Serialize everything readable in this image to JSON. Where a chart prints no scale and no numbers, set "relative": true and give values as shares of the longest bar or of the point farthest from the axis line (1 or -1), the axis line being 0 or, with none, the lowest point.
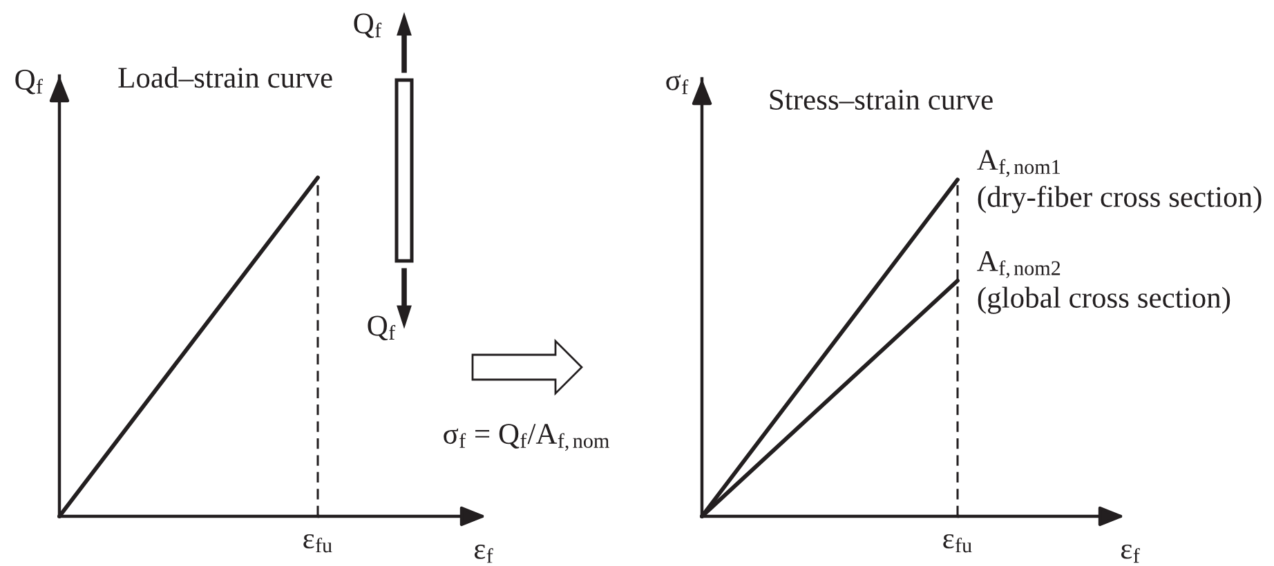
{
  "chart_data": [
    {
      "type": "line",
      "title": "Load–strain curve",
      "xlabel": "ε$_{f}$",
      "ylabel": "Q$_{f}$",
      "categories": [
        null,
        null
      ],
      "relative": true,
      "series": [
        {
          "color": "#231f20",
          "values": [
            0,
            1
          ]
        }
      ],
      "annotations": [
        "ε$_{fu}$",
        "Q$_{f}$",
        "Q$_{f}$",
        "σ$_{f}$ = Q$_{f}$/A$_{f,nom}$"
      ]
    },
    {
      "type": "line",
      "title": "Stress–strain curve",
      "xlabel": "ε$_{f}$",
      "ylabel": "σ$_{f}$",
      "categories": [
        null,
        null
      ],
      "relative": true,
      "series": [
        {
          "name": "A$_{f,nom1}$\n(dry-fiber cross section)",
          "color": "#231f20",
          "values": [
            0,
            1
          ]
        },
        {
          "name": "A$_{f,nom2}$\n(global cross section)",
          "color": "#231f20",
          "values": [
            0,
            0.7
          ]
        }
      ],
      "annotations": [
        "ε$_{fu}$"
      ]
    }
  ]
}
